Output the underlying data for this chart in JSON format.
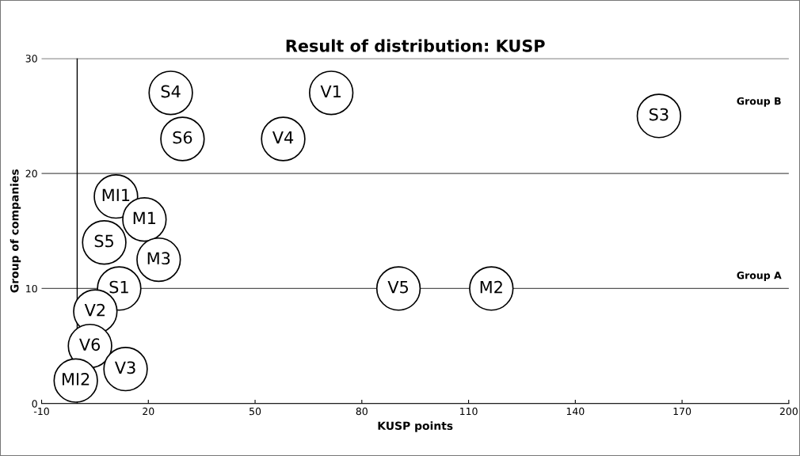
{
  "chart_data": {
    "type": "scatter",
    "title": "Result of distribution: KUSP",
    "xlabel": "KUSP points",
    "ylabel": "Group of companies",
    "x": [
      26.3,
      71.4,
      163.5,
      29.6,
      57.9,
      10.9,
      18.9,
      7.6,
      22.9,
      11.8,
      90.3,
      116.4,
      5.1,
      3.6,
      13.6,
      -0.4
    ],
    "series": [
      {
        "color": "#000000",
        "values": [
          27,
          27,
          25,
          23,
          23,
          18,
          16,
          14,
          12.5,
          10,
          10,
          10,
          8,
          5,
          3,
          2
        ]
      }
    ],
    "xlim": [
      -10,
      200
    ],
    "xticks": [
      -10,
      20,
      50,
      80,
      110,
      140,
      170,
      200
    ],
    "ylim": [
      0,
      30
    ],
    "yticks": [
      0,
      10,
      20,
      30
    ],
    "grid": "y",
    "marker": "circle",
    "ref_lines": [
      {
        "axis": "x",
        "value": 0,
        "color": "#000000"
      }
    ],
    "annotations": [
      {
        "text": "S4",
        "x": 26.3,
        "y": 27
      },
      {
        "text": "V1",
        "x": 71.4,
        "y": 27
      },
      {
        "text": "S3",
        "x": 163.5,
        "y": 25
      },
      {
        "text": "S6",
        "x": 29.6,
        "y": 23
      },
      {
        "text": "V4",
        "x": 57.9,
        "y": 23
      },
      {
        "text": "MI1",
        "x": 10.9,
        "y": 18
      },
      {
        "text": "M1",
        "x": 18.9,
        "y": 16
      },
      {
        "text": "S5",
        "x": 7.6,
        "y": 14
      },
      {
        "text": "M3",
        "x": 22.9,
        "y": 12.5
      },
      {
        "text": "S1",
        "x": 11.8,
        "y": 10
      },
      {
        "text": "V5",
        "x": 90.3,
        "y": 10
      },
      {
        "text": "M2",
        "x": 116.4,
        "y": 10
      },
      {
        "text": "V2",
        "x": 5.1,
        "y": 8
      },
      {
        "text": "V6",
        "x": 3.6,
        "y": 5
      },
      {
        "text": "V3",
        "x": 13.6,
        "y": 3
      },
      {
        "text": "MI2",
        "x": -0.4,
        "y": 2
      },
      "Group B",
      "Group A"
    ]
  }
}
